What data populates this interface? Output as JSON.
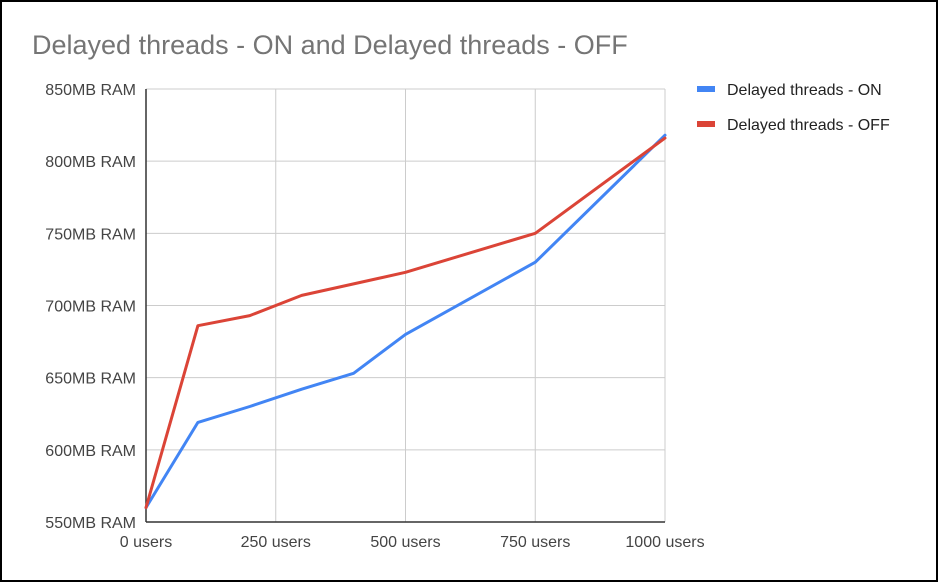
{
  "chart_data": {
    "type": "line",
    "title": "Delayed threads - ON and Delayed threads - OFF",
    "xlabel": "",
    "ylabel": "",
    "x_ticks": [
      0,
      250,
      500,
      750,
      1000
    ],
    "x_tick_labels": [
      "0 users",
      "250 users",
      "500 users",
      "750 users",
      "1000 users"
    ],
    "xlim": [
      0,
      1000
    ],
    "y_ticks": [
      550,
      600,
      650,
      700,
      750,
      800,
      850
    ],
    "y_tick_labels": [
      "550MB RAM",
      "600MB RAM",
      "650MB RAM",
      "700MB RAM",
      "750MB RAM",
      "800MB RAM",
      "850MB RAM"
    ],
    "ylim": [
      550,
      850
    ],
    "grid": true,
    "legend_position": "right",
    "series": [
      {
        "name": "Delayed threads - ON",
        "color": "#4285f4",
        "points": [
          [
            0,
            560
          ],
          [
            100,
            619
          ],
          [
            200,
            630
          ],
          [
            300,
            642
          ],
          [
            400,
            653
          ],
          [
            500,
            680
          ],
          [
            750,
            730
          ],
          [
            1000,
            818
          ]
        ]
      },
      {
        "name": "Delayed threads - OFF",
        "color": "#db4437",
        "points": [
          [
            0,
            560
          ],
          [
            100,
            686
          ],
          [
            200,
            693
          ],
          [
            300,
            707
          ],
          [
            400,
            715
          ],
          [
            500,
            723
          ],
          [
            750,
            750
          ],
          [
            1000,
            816
          ]
        ]
      }
    ]
  }
}
